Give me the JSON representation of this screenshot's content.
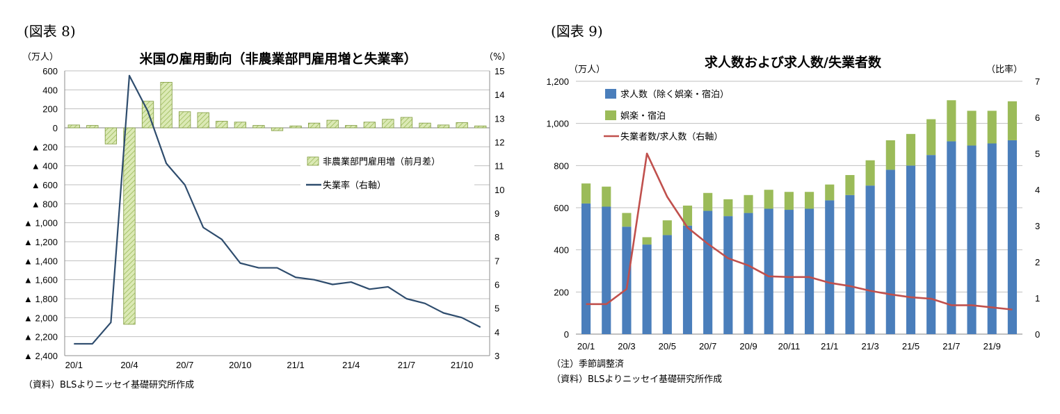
{
  "left": {
    "fig_label": "(図表 8)",
    "chart_data": {
      "type": "bar",
      "title": "米国の雇用動向（非農業部門雇用増と失業率）",
      "y_left_unit": "（万人）",
      "y_right_unit": "（%）",
      "ylim_left": [
        -2400,
        600
      ],
      "ylim_right": [
        3,
        15
      ],
      "y_left_ticks": [
        "600",
        "400",
        "200",
        "0",
        "▲ 200",
        "▲ 400",
        "▲ 600",
        "▲ 800",
        "▲ 1,000",
        "▲ 1,200",
        "▲ 1,400",
        "▲ 1,600",
        "▲ 1,800",
        "▲ 2,000",
        "▲ 2,200",
        "▲ 2,400"
      ],
      "y_right_ticks": [
        "15",
        "14",
        "13",
        "12",
        "11",
        "10",
        "9",
        "8",
        "7",
        "6",
        "5",
        "4",
        "3"
      ],
      "x_ticks": [
        "20/1",
        "20/4",
        "20/7",
        "20/10",
        "21/1",
        "21/4",
        "21/7",
        "21/10"
      ],
      "x_tick_index": [
        0,
        3,
        6,
        9,
        12,
        15,
        18,
        21
      ],
      "series": [
        {
          "name": "非農業部門雇用増（前月差）",
          "axis": "left",
          "kind": "bar",
          "values": [
            30,
            25,
            -170,
            -2070,
            280,
            480,
            170,
            160,
            70,
            60,
            25,
            -30,
            20,
            50,
            80,
            25,
            60,
            90,
            110,
            50,
            30,
            55,
            20
          ]
        },
        {
          "name": "失業率（右軸）",
          "axis": "right",
          "kind": "line",
          "values": [
            3.5,
            3.5,
            4.4,
            14.8,
            13.3,
            11.1,
            10.2,
            8.4,
            7.9,
            6.9,
            6.7,
            6.7,
            6.3,
            6.2,
            6.0,
            6.1,
            5.8,
            5.9,
            5.4,
            5.2,
            4.8,
            4.6,
            4.2
          ]
        }
      ],
      "grid": true,
      "legend": "right"
    },
    "source_note": "（資料）BLSよりニッセイ基礎研究所作成"
  },
  "right": {
    "fig_label": "(図表 9)",
    "chart_data": {
      "type": "bar",
      "title": "求人数および求人数/失業者数",
      "y_left_unit": "（万人）",
      "y_right_unit": "（比率）",
      "ylim_left": [
        0,
        1200
      ],
      "ylim_right": [
        0,
        7
      ],
      "y_left_ticks": [
        "1,200",
        "1,000",
        "800",
        "600",
        "400",
        "200",
        "0"
      ],
      "y_right_ticks": [
        "7",
        "6",
        "5",
        "4",
        "3",
        "2",
        "1",
        "0"
      ],
      "x_ticks": [
        "20/1",
        "20/3",
        "20/5",
        "20/7",
        "20/9",
        "20/11",
        "21/1",
        "21/3",
        "21/5",
        "21/7",
        "21/9"
      ],
      "x_tick_index": [
        0,
        2,
        4,
        6,
        8,
        10,
        12,
        14,
        16,
        18,
        20
      ],
      "series": [
        {
          "name": "求人数（除く娯楽・宿泊）",
          "axis": "left",
          "kind": "bar-stack",
          "values": [
            620,
            605,
            510,
            425,
            470,
            515,
            585,
            560,
            575,
            595,
            590,
            595,
            635,
            660,
            705,
            780,
            800,
            850,
            915,
            895,
            905,
            920
          ]
        },
        {
          "name": "娯楽・宿泊",
          "axis": "left",
          "kind": "bar-stack",
          "values": [
            95,
            95,
            65,
            35,
            70,
            95,
            85,
            80,
            85,
            90,
            85,
            80,
            75,
            95,
            120,
            140,
            150,
            170,
            195,
            165,
            155,
            185
          ]
        },
        {
          "name": "失業者数/求人数（右軸）",
          "axis": "right",
          "kind": "line",
          "values": [
            0.83,
            0.83,
            1.25,
            5.0,
            3.8,
            2.95,
            2.5,
            2.1,
            1.9,
            1.6,
            1.58,
            1.58,
            1.42,
            1.33,
            1.2,
            1.1,
            1.02,
            0.98,
            0.8,
            0.8,
            0.74,
            0.68
          ]
        }
      ],
      "grid": true,
      "legend": "top-left"
    },
    "notes": [
      "（注）季節調整済",
      "（資料）BLSよりニッセイ基礎研究所作成"
    ]
  },
  "colors": {
    "hatch_fill": "#dbe9b5",
    "hatch_line": "#9bbb59",
    "hatch_border": "#7f9a3e",
    "line_left": "#2e4c6d",
    "bar_blue": "#4a7ebb",
    "bar_green": "#9bbb59",
    "line_right": "#c0504d",
    "grid": "#bfbfbf",
    "axis": "#8c8c8c"
  }
}
